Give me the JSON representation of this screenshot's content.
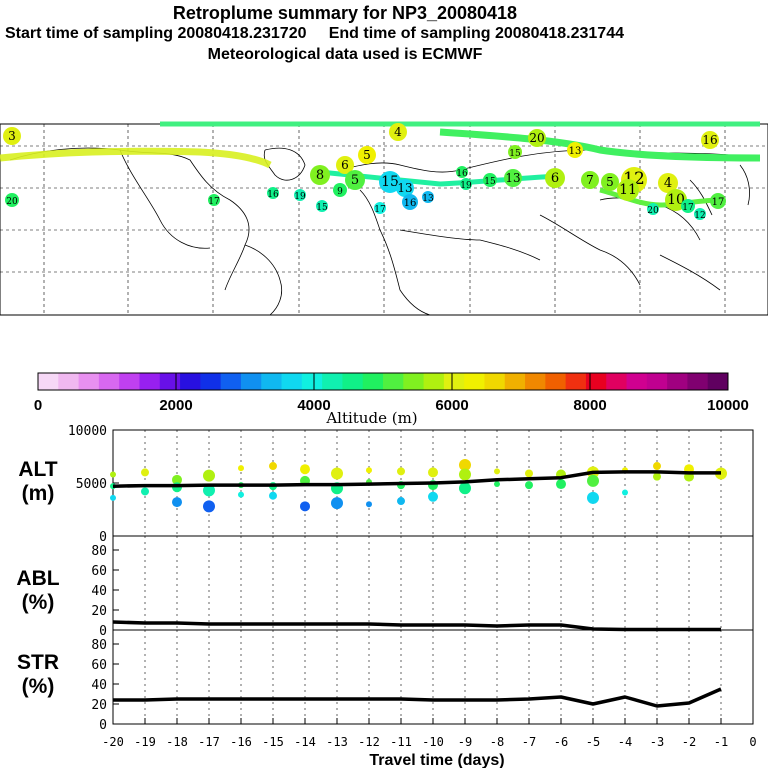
{
  "header": {
    "title": "Retroplume summary for NP3_20080418",
    "start": "Start time of sampling 20080418.231720",
    "end": "End time of sampling 20080418.231744",
    "met": "Meteorological data used is ECMWF"
  },
  "colorbar": {
    "ticks": [
      "0",
      "2000",
      "4000",
      "6000",
      "8000",
      "10000"
    ],
    "label": "Altitude (m)",
    "colors": [
      "#f6d8f6",
      "#f0b8f0",
      "#e890f0",
      "#d868f0",
      "#c040f0",
      "#9820f0",
      "#6810e8",
      "#2810e0",
      "#1030e8",
      "#1060f0",
      "#1090f0",
      "#10b8f0",
      "#10d8f0",
      "#10f0e0",
      "#10f0b0",
      "#10f088",
      "#20f060",
      "#50f040",
      "#80f020",
      "#b0f010",
      "#e0f010",
      "#f0f000",
      "#f0d800",
      "#f0b000",
      "#f08800",
      "#f06000",
      "#f03010",
      "#e80020",
      "#e00060",
      "#d00090",
      "#c00090",
      "#a00080",
      "#800070",
      "#600060"
    ]
  },
  "map_labels": [
    "3",
    "4",
    "20",
    "16",
    "5",
    "6",
    "8",
    "5",
    "9",
    "15",
    "19",
    "16",
    "15",
    "13",
    "16",
    "17",
    "13",
    "19",
    "15",
    "13",
    "6",
    "7",
    "5",
    "12",
    "11",
    "4",
    "10",
    "17",
    "12",
    "17",
    "20",
    "13",
    "15",
    "16",
    "17",
    "20"
  ],
  "chart_data": [
    {
      "type": "scatter+line",
      "name": "ALT",
      "ylabel": "ALT",
      "yunit": "(m)",
      "ylim": [
        0,
        10000
      ],
      "yticks": [
        0,
        5000,
        10000
      ],
      "xlim": [
        -20,
        0
      ],
      "x": [
        -20,
        -19,
        -18,
        -17,
        -16,
        -15,
        -14,
        -13,
        -12,
        -11,
        -10,
        -9,
        -8,
        -7,
        -6,
        -5,
        -4,
        -3,
        -2,
        -1
      ],
      "line": [
        4700,
        4750,
        4750,
        4800,
        4800,
        4800,
        4850,
        4850,
        4900,
        4950,
        5000,
        5100,
        5300,
        5400,
        5500,
        6000,
        6050,
        6050,
        5950,
        5950
      ],
      "points": [
        {
          "x": -20,
          "y": 5800
        },
        {
          "x": -20,
          "y": 4700
        },
        {
          "x": -20,
          "y": 3600
        },
        {
          "x": -19,
          "y": 6000
        },
        {
          "x": -19,
          "y": 4200
        },
        {
          "x": -18,
          "y": 5300
        },
        {
          "x": -18,
          "y": 4600
        },
        {
          "x": -18,
          "y": 3200
        },
        {
          "x": -17,
          "y": 5700
        },
        {
          "x": -17,
          "y": 4300
        },
        {
          "x": -17,
          "y": 2800
        },
        {
          "x": -16,
          "y": 6400
        },
        {
          "x": -16,
          "y": 4800
        },
        {
          "x": -16,
          "y": 3900
        },
        {
          "x": -15,
          "y": 6600
        },
        {
          "x": -15,
          "y": 4700
        },
        {
          "x": -15,
          "y": 3800
        },
        {
          "x": -14,
          "y": 6300
        },
        {
          "x": -14,
          "y": 5200
        },
        {
          "x": -14,
          "y": 2800
        },
        {
          "x": -13,
          "y": 5900
        },
        {
          "x": -13,
          "y": 4500
        },
        {
          "x": -13,
          "y": 3100
        },
        {
          "x": -12,
          "y": 6200
        },
        {
          "x": -12,
          "y": 5100
        },
        {
          "x": -12,
          "y": 3000
        },
        {
          "x": -11,
          "y": 6100
        },
        {
          "x": -11,
          "y": 4800
        },
        {
          "x": -11,
          "y": 3300
        },
        {
          "x": -10,
          "y": 6000
        },
        {
          "x": -10,
          "y": 4800
        },
        {
          "x": -10,
          "y": 3700
        },
        {
          "x": -9,
          "y": 6700
        },
        {
          "x": -9,
          "y": 5800
        },
        {
          "x": -9,
          "y": 4500
        },
        {
          "x": -8,
          "y": 6100
        },
        {
          "x": -8,
          "y": 4900
        },
        {
          "x": -7,
          "y": 5900
        },
        {
          "x": -7,
          "y": 4800
        },
        {
          "x": -6,
          "y": 5800
        },
        {
          "x": -6,
          "y": 4900
        },
        {
          "x": -5,
          "y": 6000
        },
        {
          "x": -5,
          "y": 5200
        },
        {
          "x": -5,
          "y": 3600
        },
        {
          "x": -4,
          "y": 6200
        },
        {
          "x": -4,
          "y": 4100
        },
        {
          "x": -3,
          "y": 6600
        },
        {
          "x": -3,
          "y": 5600
        },
        {
          "x": -2,
          "y": 6300
        },
        {
          "x": -2,
          "y": 5600
        },
        {
          "x": -1,
          "y": 5900
        }
      ]
    },
    {
      "type": "line",
      "name": "ABL",
      "ylabel": "ABL",
      "yunit": "(%)",
      "ylim": [
        0,
        90
      ],
      "yticks": [
        0,
        20,
        40,
        60,
        80
      ],
      "x": [
        -20,
        -19,
        -18,
        -17,
        -16,
        -15,
        -14,
        -13,
        -12,
        -11,
        -10,
        -9,
        -8,
        -7,
        -6,
        -5,
        -4,
        -3,
        -2,
        -1
      ],
      "values": [
        8,
        7,
        7,
        6,
        6,
        6,
        6,
        6,
        6,
        5,
        5,
        5,
        4,
        5,
        5,
        1,
        0.5,
        0.5,
        0.5,
        0.5
      ]
    },
    {
      "type": "line",
      "name": "STR",
      "ylabel": "STR",
      "yunit": "(%)",
      "ylim": [
        0,
        90
      ],
      "yticks": [
        0,
        20,
        40,
        60,
        80
      ],
      "x": [
        -20,
        -19,
        -18,
        -17,
        -16,
        -15,
        -14,
        -13,
        -12,
        -11,
        -10,
        -9,
        -8,
        -7,
        -6,
        -5,
        -4,
        -3,
        -2,
        -1
      ],
      "values": [
        24,
        24,
        25,
        25,
        25,
        25,
        25,
        25,
        25,
        25,
        24,
        24,
        24,
        25,
        27,
        20,
        27,
        18,
        21,
        35
      ]
    }
  ],
  "xaxis": {
    "ticks": [
      "-20",
      "-19",
      "-18",
      "-17",
      "-16",
      "-15",
      "-14",
      "-13",
      "-12",
      "-11",
      "-10",
      "-9",
      "-8",
      "-7",
      "-6",
      "-5",
      "-4",
      "-3",
      "-2",
      "-1",
      "0"
    ],
    "label": "Travel time (days)"
  }
}
